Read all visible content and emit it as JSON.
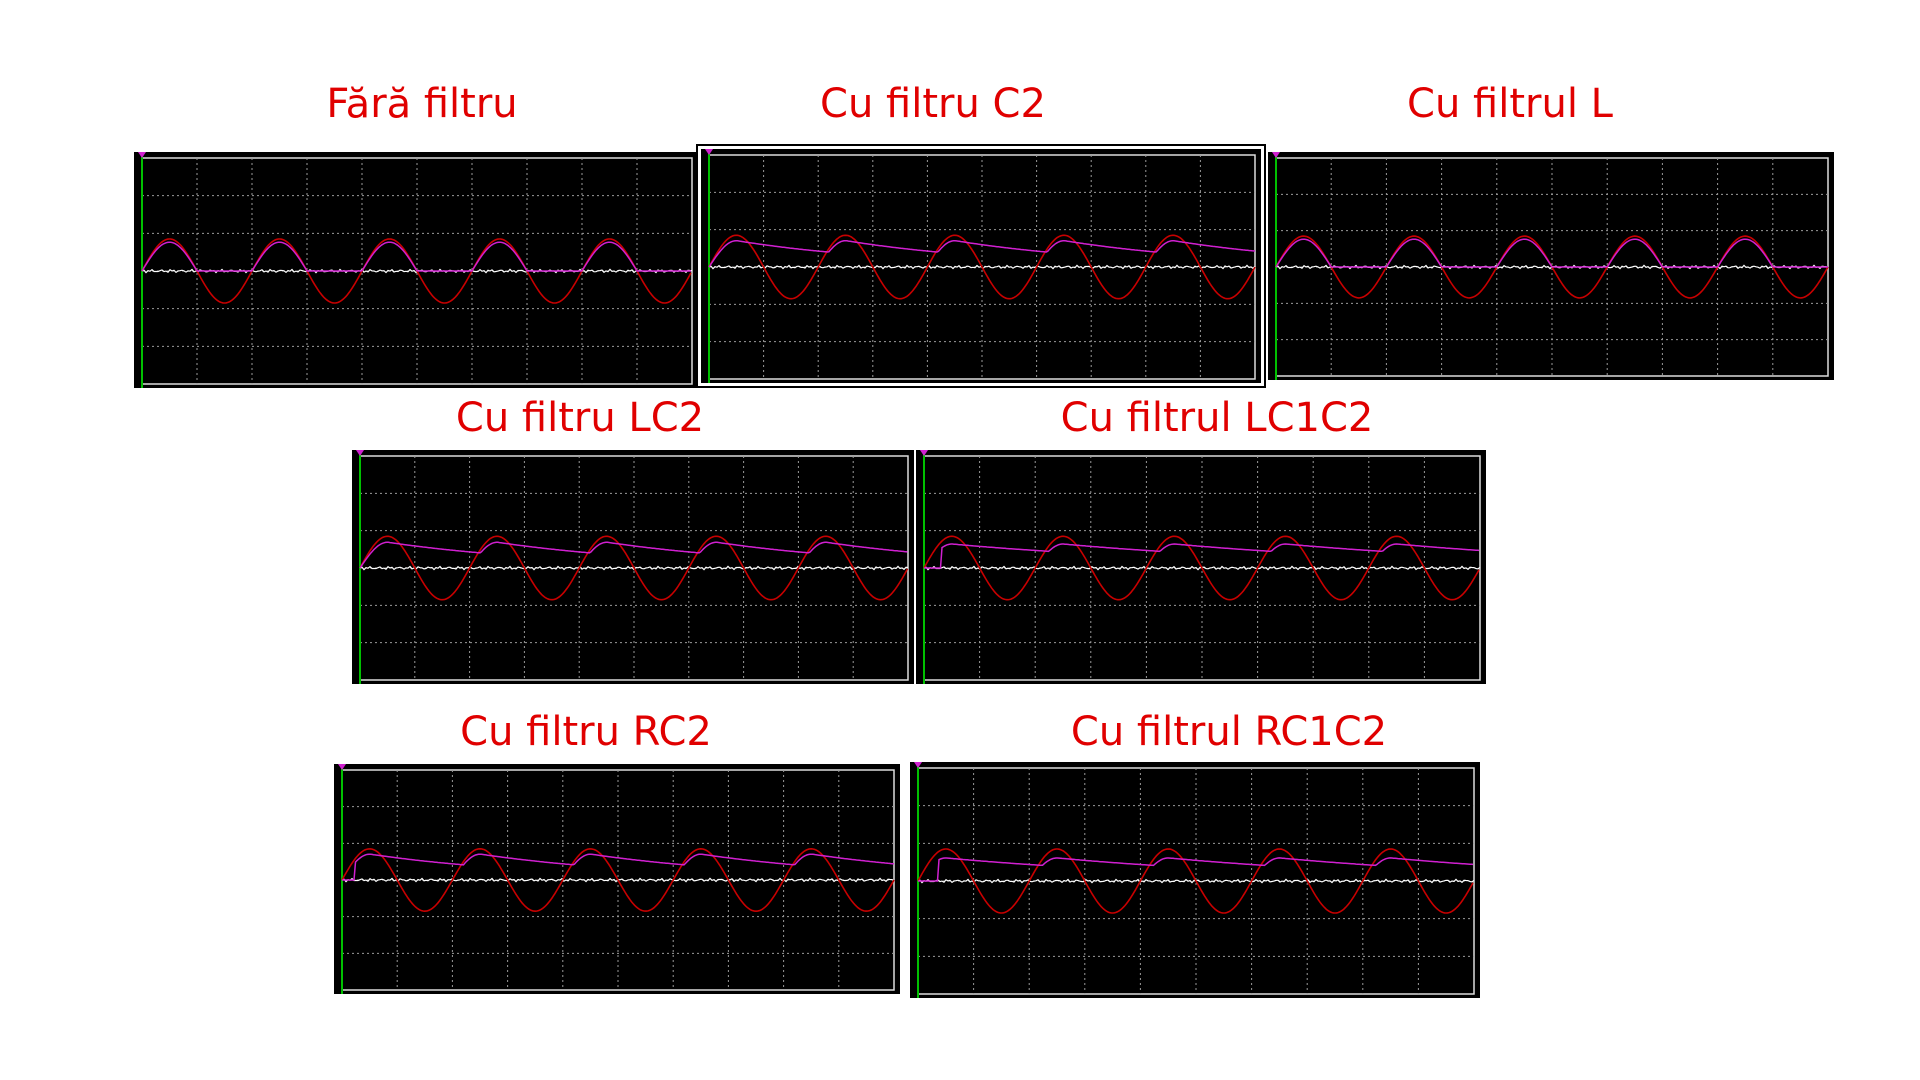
{
  "colors": {
    "title": "#e00000",
    "screen": "#000000",
    "grid": "#9a9a9a",
    "axis": "#ffffff",
    "input_trace": "#c80000",
    "output_trace": "#d020d0",
    "cursor": "#00c000"
  },
  "panels": [
    {
      "id": "fara-filtru",
      "title": "Fără filtru",
      "output": {
        "mode": "follow"
      }
    },
    {
      "id": "filtru-c2",
      "title": "Cu filtru C2",
      "output": {
        "mode": "decay",
        "decay_per_cycle": 0.45,
        "lag": 0.04
      }
    },
    {
      "id": "filtrul-l",
      "title": "Cu filtrul L",
      "output": {
        "mode": "follow"
      }
    },
    {
      "id": "filtru-lc2",
      "title": "Cu filtru LC2",
      "output": {
        "mode": "decay",
        "decay_per_cycle": 0.42,
        "lag": 0.05
      }
    },
    {
      "id": "filtrul-lc1c2",
      "title": "Cu filtrul LC1C2",
      "output": {
        "mode": "decay",
        "decay_per_cycle": 0.28,
        "lag": 0.08,
        "start_delay": 0.15
      }
    },
    {
      "id": "filtru-rc2",
      "title": "Cu filtru RC2",
      "output": {
        "mode": "decay",
        "decay_per_cycle": 0.42,
        "lag": 0.04,
        "start_delay": 0.12
      }
    },
    {
      "id": "filtrul-rc1c2",
      "title": "Cu filtrul RC1C2",
      "output": {
        "mode": "decay",
        "decay_per_cycle": 0.3,
        "lag": 0.1,
        "start_delay": 0.18
      }
    }
  ]
}
